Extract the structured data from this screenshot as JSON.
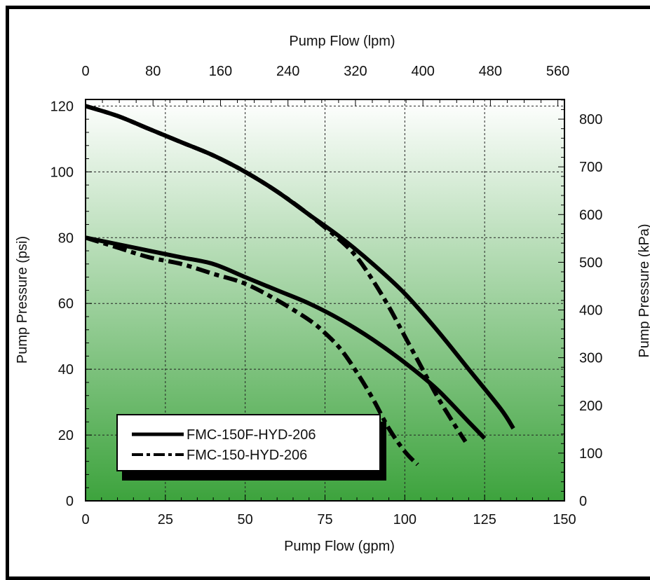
{
  "chart_data": {
    "type": "line",
    "title": "",
    "xlabel": "Pump Flow (gpm)",
    "x2label": "Pump Flow (lpm)",
    "ylabel": "Pump Pressure (psi)",
    "y2label": "Pump Pressure (kPa)",
    "xlim": [
      0,
      150
    ],
    "ylim": [
      0,
      122
    ],
    "x2lim": [
      0,
      567.8
    ],
    "y2lim": [
      0,
      841.2
    ],
    "x_ticks": [
      0,
      25,
      50,
      75,
      100,
      125,
      150
    ],
    "y_ticks": [
      0,
      20,
      40,
      60,
      80,
      100,
      120
    ],
    "x2_ticks": [
      0,
      80,
      160,
      240,
      320,
      400,
      480,
      560
    ],
    "y2_ticks": [
      0,
      100,
      200,
      300,
      400,
      500,
      600,
      700,
      800
    ],
    "grid": true,
    "legend_position": "bottom-left",
    "background_gradient": [
      "#ffffff",
      "#3da33d"
    ],
    "series": [
      {
        "name": "FMC-150F-HYD-206",
        "style": "solid",
        "color": "#000000",
        "x": [
          0,
          10,
          20,
          30,
          40,
          50,
          60,
          70,
          80,
          90,
          100,
          110,
          120,
          130,
          134
        ],
        "y": [
          120,
          117,
          113,
          109,
          105,
          100,
          94,
          87,
          80,
          72,
          63,
          52,
          40,
          28,
          22
        ]
      },
      {
        "name": "FMC-150-HYD-206",
        "style": "dashed",
        "color": "#000000",
        "x": [
          0,
          10,
          20,
          30,
          40,
          50,
          60,
          70,
          80,
          85,
          90,
          95,
          100,
          105,
          110,
          115,
          119
        ],
        "y": [
          120,
          117,
          113,
          109,
          105,
          100,
          94,
          87,
          79,
          74,
          67,
          59,
          50,
          41,
          32,
          24,
          18
        ]
      },
      {
        "name": "",
        "style": "solid",
        "color": "#000000",
        "x": [
          0,
          10,
          20,
          30,
          40,
          50,
          60,
          70,
          80,
          90,
          100,
          110,
          120,
          125
        ],
        "y": [
          80,
          78,
          76,
          74,
          72,
          68,
          64,
          60,
          55,
          49,
          42,
          34,
          24,
          19
        ]
      },
      {
        "name": "",
        "style": "dashed",
        "color": "#000000",
        "x": [
          0,
          10,
          20,
          30,
          40,
          50,
          60,
          70,
          75,
          80,
          85,
          90,
          95,
          100,
          104
        ],
        "y": [
          80,
          77,
          74,
          72,
          69,
          66,
          61,
          55,
          51,
          46,
          39,
          31,
          22,
          15,
          11
        ]
      }
    ]
  }
}
